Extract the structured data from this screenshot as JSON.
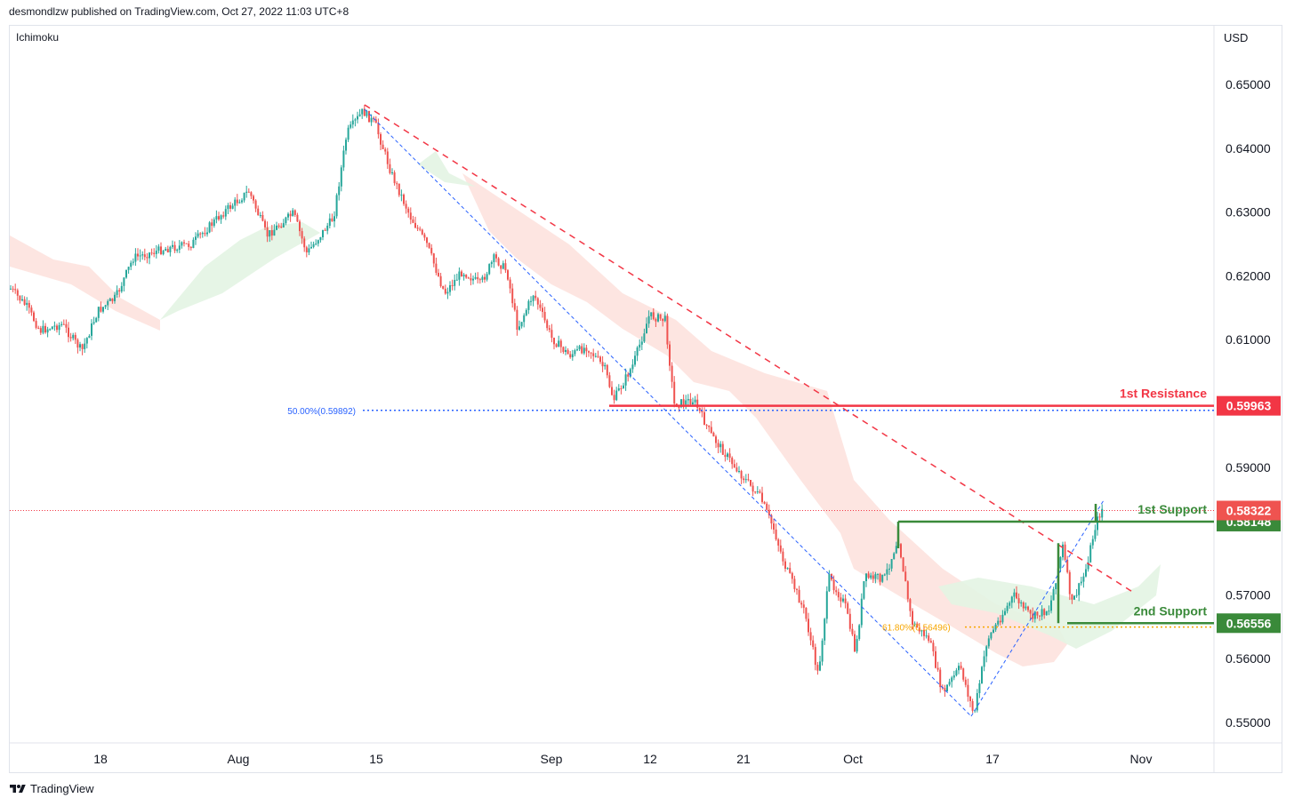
{
  "header": {
    "published": "desmondlzw published on TradingView.com, Oct 27, 2022 11:03 UTC+8",
    "indicator": "Ichimoku",
    "currency": "USD"
  },
  "footer": {
    "brand": "TradingView",
    "logo_icon": "tradingview-logo-icon"
  },
  "colors": {
    "bull": "#26a69a",
    "bear": "#ef5350",
    "resistance": "#f23645",
    "support": "#3a8a3a",
    "fib50": "#2962ff",
    "fib618": "#f7a600",
    "cloud_bear": "#fde0dc",
    "cloud_bull": "#e3f4e3"
  },
  "chart_data": {
    "type": "candlestick",
    "ylim": [
      0.548,
      0.6555
    ],
    "y_ticks": [
      "0.65000",
      "0.64000",
      "0.63000",
      "0.62000",
      "0.61000",
      "0.59000",
      "0.57000",
      "0.56000",
      "0.55000"
    ],
    "x_ticks": [
      "18",
      "Aug",
      "15",
      "Sep",
      "12",
      "21",
      "Oct",
      "17",
      "Nov"
    ],
    "price_lines": [
      {
        "label": "1st Resistance",
        "value_label": "0.59963",
        "value": 0.59963,
        "color": "#f23645"
      },
      {
        "label": "1st Support",
        "value_label": "0.58148",
        "value": 0.58148,
        "color": "#3a8a3a"
      },
      {
        "label": "2nd Support",
        "value_label": "0.56556",
        "value": 0.56556,
        "color": "#3a8a3a"
      }
    ],
    "last_price": {
      "value_label": "0.58322",
      "value": 0.58322
    },
    "fibonacci": [
      {
        "label": "50.00%(0.59892)",
        "value": 0.59892
      },
      {
        "label": "61.80%(0.56496)",
        "value": 0.56496
      }
    ]
  }
}
